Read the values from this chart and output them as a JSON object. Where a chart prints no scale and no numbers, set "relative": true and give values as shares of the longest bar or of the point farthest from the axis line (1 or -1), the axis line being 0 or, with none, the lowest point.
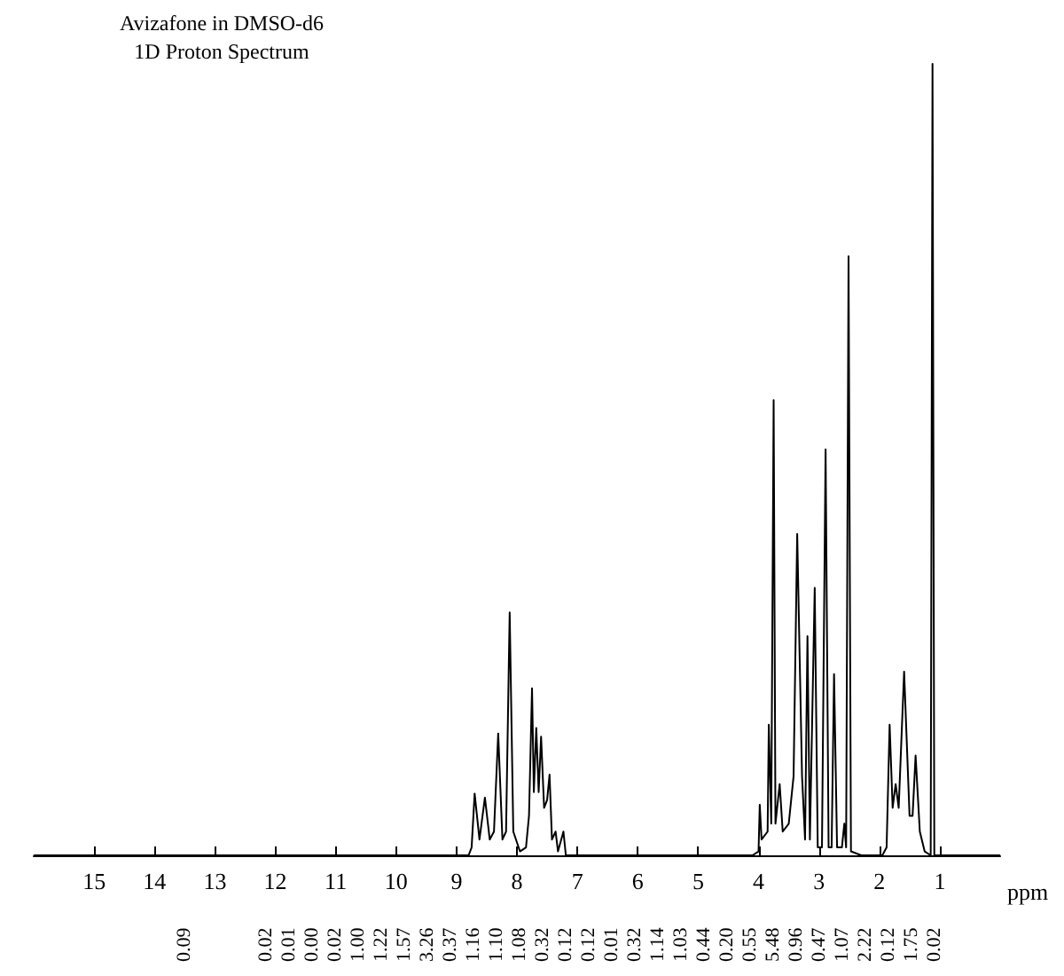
{
  "chart_data": {
    "type": "line",
    "title": "Avizafone in DMSO-d6",
    "subtitle": "1D Proton Spectrum",
    "xlabel": "ppm",
    "relative": true,
    "xlim": [
      16,
      0
    ],
    "xticks": [
      15,
      14,
      13,
      12,
      11,
      10,
      9,
      8,
      7,
      6,
      5,
      4,
      3,
      2,
      1
    ],
    "grid": false,
    "marker": "none",
    "line_style": "solid",
    "x": [
      16,
      10.5,
      8.8,
      8.75,
      8.7,
      8.62,
      8.53,
      8.45,
      8.38,
      8.31,
      8.24,
      8.18,
      8.12,
      8.06,
      7.95,
      7.85,
      7.8,
      7.75,
      7.72,
      7.68,
      7.64,
      7.6,
      7.55,
      7.5,
      7.46,
      7.42,
      7.36,
      7.32,
      7.23,
      7.19,
      4.1,
      4.0,
      3.98,
      3.95,
      3.85,
      3.83,
      3.79,
      3.75,
      3.72,
      3.65,
      3.6,
      3.5,
      3.42,
      3.36,
      3.28,
      3.23,
      3.19,
      3.15,
      3.07,
      3.02,
      2.95,
      2.89,
      2.84,
      2.79,
      2.75,
      2.7,
      2.62,
      2.58,
      2.55,
      2.51,
      2.47,
      2.3,
      1.95,
      1.88,
      1.83,
      1.78,
      1.73,
      1.68,
      1.59,
      1.5,
      1.45,
      1.4,
      1.33,
      1.25,
      1.15,
      1.12,
      1.09,
      0
    ],
    "series": [
      {
        "color": "#000000",
        "values": [
          0,
          0,
          0,
          0.01,
          0.078,
          0.02,
          0.073,
          0.02,
          0.03,
          0.154,
          0.02,
          0.03,
          0.307,
          0.03,
          0.005,
          0.01,
          0.05,
          0.211,
          0.08,
          0.161,
          0.08,
          0.15,
          0.06,
          0.07,
          0.102,
          0.02,
          0.03,
          0.005,
          0.03,
          0,
          0,
          0.005,
          0.064,
          0.02,
          0.03,
          0.165,
          0.04,
          0.575,
          0.04,
          0.09,
          0.03,
          0.04,
          0.1,
          0.406,
          0.1,
          0.02,
          0.277,
          0.02,
          0.338,
          0.01,
          0.01,
          0.513,
          0.01,
          0.01,
          0.229,
          0.01,
          0.01,
          0.04,
          0.01,
          0.757,
          0.005,
          0,
          0,
          0.01,
          0.165,
          0.06,
          0.09,
          0.06,
          0.232,
          0.05,
          0.05,
          0.126,
          0.03,
          0.005,
          0,
          1,
          0,
          0
        ]
      }
    ],
    "annotations": [
      "0.09",
      "0.02",
      "0.01",
      "0.00",
      "0.02",
      "1.00",
      "1.22",
      "1.57",
      "3.26",
      "0.37",
      "1.16",
      "1.10",
      "1.08",
      "0.32",
      "0.12",
      "0.12",
      "0.01",
      "0.32",
      "1.14",
      "1.03",
      "0.44",
      "0.20",
      "0.55",
      "5.48",
      "0.96",
      "0.47",
      "1.07",
      "2.22",
      "0.12",
      "1.75",
      "0.02"
    ]
  }
}
